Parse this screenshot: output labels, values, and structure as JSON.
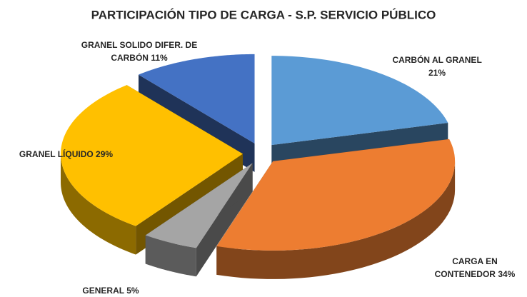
{
  "chart_data": {
    "type": "pie3d",
    "title": "PARTICIPACIÓN TIPO DE CARGA - S.P. SERVICIO PÚBLICO",
    "categories": [
      "CARBÓN AL GRANEL",
      "CARGA EN CONTENEDOR",
      "GENERAL",
      "GRANEL LÍQUIDO",
      "GRANEL SOLIDO DIFER. DE CARBÓN"
    ],
    "values": [
      21,
      34,
      5,
      29,
      11
    ],
    "value_labels": [
      "21%",
      "34%",
      "5%",
      "29%",
      "11%"
    ],
    "colors": [
      "#5b9bd5",
      "#ed7d31",
      "#a5a5a5",
      "#ffc000",
      "#4472c4"
    ]
  }
}
